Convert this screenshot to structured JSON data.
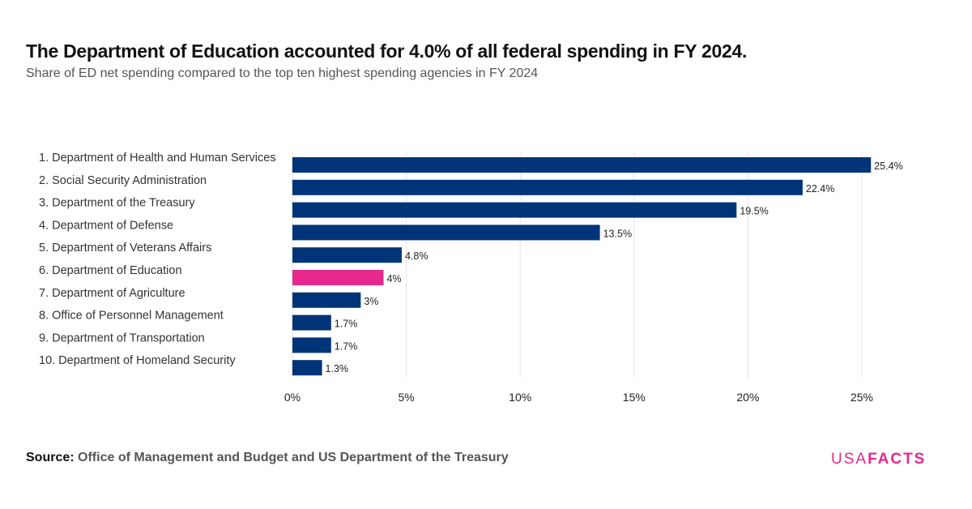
{
  "header": {
    "title": "The Department of Education accounted for 4.0% of all federal spending in FY 2024.",
    "subtitle": "Share of ED net spending compared to the top ten highest spending agencies in FY 2024"
  },
  "footer": {
    "source_label": "Source:",
    "source_text": "Office of Management and Budget and US Department of the Treasury",
    "logo_part1": "USA",
    "logo_part2": "FACTS"
  },
  "colors": {
    "default": "#003478",
    "highlight": "#e6288f"
  },
  "chart_data": {
    "type": "bar",
    "orientation": "horizontal",
    "title": "The Department of Education accounted for 4.0% of all federal spending in FY 2024.",
    "subtitle": "Share of ED net spending compared to the top ten highest spending agencies in FY 2024",
    "categories": [
      "1. Department of Health and Human Services",
      "2. Social Security Administration",
      "3. Department of the Treasury",
      "4. Department of Defense",
      "5. Department of Veterans Affairs",
      "6. Department of Education",
      "7. Department of Agriculture",
      "8. Office of Personnel Management",
      "9. Department of Transportation",
      "10. Department of Homeland Security"
    ],
    "values": [
      25.4,
      22.4,
      19.5,
      13.5,
      4.8,
      4.0,
      3.0,
      1.7,
      1.7,
      1.3
    ],
    "value_labels": [
      "25.4%",
      "22.4%",
      "19.5%",
      "13.5%",
      "4.8%",
      "4%",
      "3%",
      "1.7%",
      "1.7%",
      "1.3%"
    ],
    "highlight_index": 5,
    "xlim": [
      0,
      25
    ],
    "xticks": [
      0,
      5,
      10,
      15,
      20,
      25
    ],
    "xtick_labels": [
      "0%",
      "5%",
      "10%",
      "15%",
      "20%",
      "25%"
    ],
    "grid": true,
    "xlabel": "",
    "ylabel": ""
  }
}
